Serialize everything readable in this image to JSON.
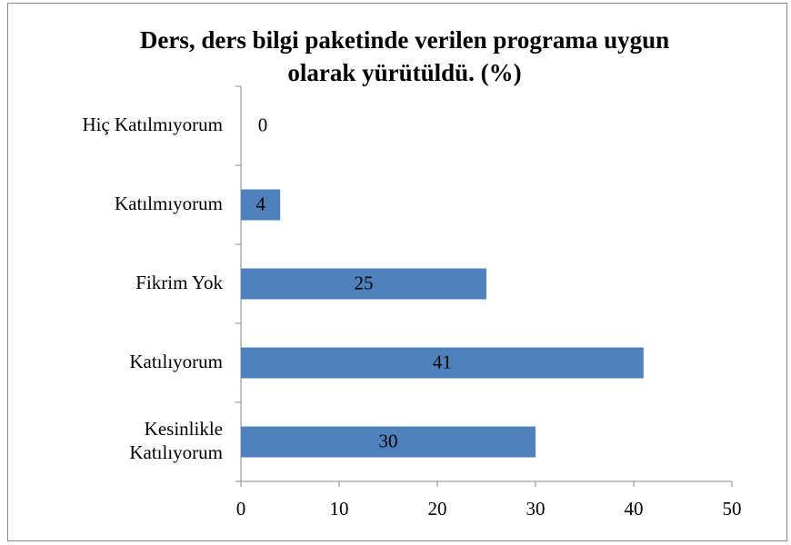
{
  "chart_data": {
    "type": "barh",
    "title": "Ders, ders bilgi paketinde verilen programa uygun olarak yürütüldü. (%)",
    "categories": [
      "Hiç Katılmıyorum",
      "Katılmıyorum",
      "Fikrim Yok",
      "Katılıyorum",
      "Kesinlikle Katılıyorum"
    ],
    "values": [
      0,
      4,
      25,
      41,
      30
    ],
    "color": "#4f81bd",
    "xlim": [
      0,
      50
    ],
    "xticks": [
      0,
      10,
      20,
      30,
      40,
      50
    ],
    "grid": false
  }
}
